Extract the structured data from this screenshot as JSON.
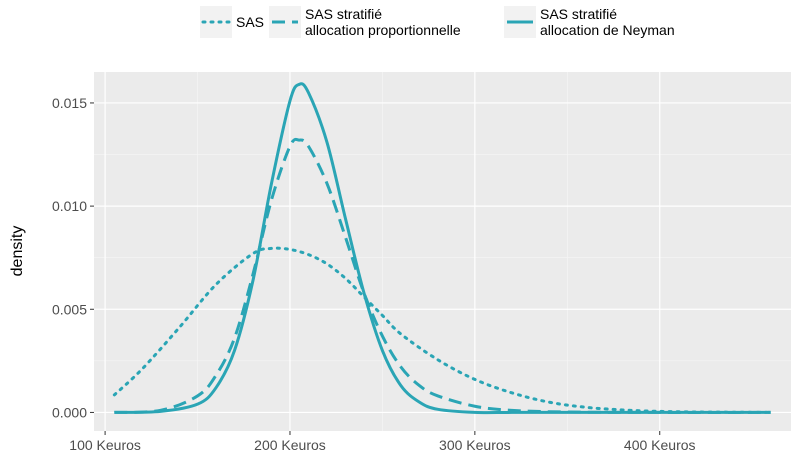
{
  "chart_data": {
    "type": "line",
    "title": "",
    "xlabel": "",
    "ylabel": "density",
    "x_unit": "Keuros",
    "xlim": [
      94,
      471
    ],
    "ylim": [
      -0.0009,
      0.0165
    ],
    "x_ticks": [
      100,
      200,
      300,
      400
    ],
    "x_tick_labels": [
      "100 Keuros",
      "200 Keuros",
      "300 Keuros",
      "400 Keuros"
    ],
    "y_ticks": [
      0.0,
      0.005,
      0.01,
      0.015
    ],
    "y_tick_labels": [
      "0.000",
      "0.005",
      "0.010",
      "0.015"
    ],
    "grid": true,
    "legend_position": "top",
    "series": [
      {
        "name": "SAS",
        "line_style": "dotted",
        "color": "#2aa5b5",
        "x": [
          105,
          120,
          140,
          160,
          180,
          190,
          200,
          210,
          220,
          230,
          240,
          250,
          260,
          280,
          300,
          320,
          340,
          360,
          380,
          400,
          420,
          440,
          460
        ],
        "y": [
          0.00085,
          0.0021,
          0.0041,
          0.0062,
          0.0077,
          0.00795,
          0.0079,
          0.00765,
          0.0072,
          0.0065,
          0.0056,
          0.0047,
          0.0038,
          0.00255,
          0.0016,
          0.00095,
          0.0005,
          0.00025,
          0.00012,
          5e-05,
          2e-05,
          1e-05,
          0.0
        ]
      },
      {
        "name": "SAS stratifié\nallocation proportionnelle",
        "line_style": "dashed",
        "color": "#2aa5b5",
        "x": [
          105,
          130,
          150,
          160,
          170,
          180,
          190,
          200,
          205,
          210,
          220,
          230,
          240,
          250,
          260,
          270,
          280,
          300,
          320,
          350,
          400,
          460
        ],
        "y": [
          0.0,
          0.0001,
          0.0008,
          0.0018,
          0.0036,
          0.0067,
          0.0103,
          0.0129,
          0.0132,
          0.0129,
          0.0111,
          0.0085,
          0.0058,
          0.0037,
          0.0022,
          0.0013,
          0.0008,
          0.0003,
          0.0001,
          2e-05,
          0.0,
          0.0
        ]
      },
      {
        "name": "SAS stratifié\nallocation de Neyman",
        "line_style": "solid",
        "color": "#2aa5b5",
        "x": [
          105,
          130,
          150,
          160,
          170,
          180,
          190,
          200,
          205,
          210,
          220,
          230,
          240,
          250,
          260,
          270,
          280,
          300,
          320,
          350,
          400,
          460
        ],
        "y": [
          0.0,
          5e-05,
          0.0004,
          0.0012,
          0.003,
          0.0064,
          0.0111,
          0.0151,
          0.0159,
          0.0155,
          0.0131,
          0.0094,
          0.0058,
          0.003,
          0.0013,
          0.0005,
          0.00015,
          0.0,
          0.0,
          0.0,
          0.0,
          0.0
        ]
      }
    ]
  }
}
